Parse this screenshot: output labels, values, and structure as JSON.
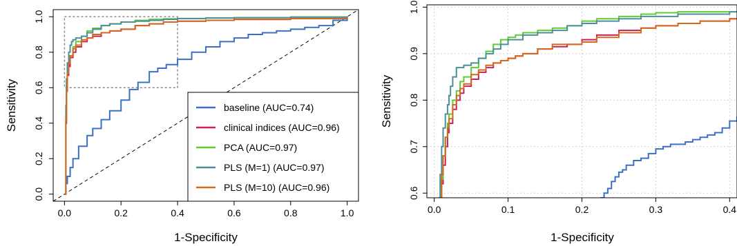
{
  "chart_data": [
    {
      "type": "line",
      "title": "",
      "xlabel": "1-Specificity",
      "ylabel": "Sensitivity",
      "xlim": [
        -0.04,
        1.04
      ],
      "ylim": [
        -0.04,
        1.04
      ],
      "xticks": [
        0.0,
        0.2,
        0.4,
        0.6,
        0.8,
        1.0
      ],
      "yticks": [
        0.0,
        0.2,
        0.4,
        0.6,
        0.8,
        1.0
      ],
      "tick_labels_x": [
        "0.0",
        "0.2",
        "0.4",
        "0.6",
        "0.8",
        "1.0"
      ],
      "tick_labels_y": [
        "0.0",
        "0.2",
        "0.4",
        "0.6",
        "0.8",
        "1.0"
      ],
      "grid": false,
      "legend_position": "bottom-right",
      "reference_line": "diagonal dashed",
      "zoom_box": {
        "x": [
          0.0,
          0.4
        ],
        "y": [
          0.6,
          1.0
        ]
      },
      "series": [
        {
          "name": "baseline (AUC=0.74)",
          "color": "#3a6fc4",
          "x": [
            0.0,
            0.005,
            0.01,
            0.02,
            0.03,
            0.05,
            0.08,
            0.1,
            0.13,
            0.16,
            0.2,
            0.23,
            0.26,
            0.3,
            0.33,
            0.36,
            0.4,
            0.45,
            0.5,
            0.55,
            0.6,
            0.65,
            0.7,
            0.75,
            0.8,
            0.85,
            0.9,
            0.95,
            1.0
          ],
          "y": [
            0.0,
            0.06,
            0.1,
            0.15,
            0.2,
            0.27,
            0.33,
            0.37,
            0.42,
            0.47,
            0.53,
            0.59,
            0.63,
            0.69,
            0.71,
            0.73,
            0.76,
            0.8,
            0.83,
            0.86,
            0.88,
            0.9,
            0.91,
            0.92,
            0.93,
            0.94,
            0.95,
            0.98,
            1.0
          ]
        },
        {
          "name": "clinical indices (AUC=0.96)",
          "color": "#cc1f5a",
          "x": [
            0.0,
            0.005,
            0.007,
            0.01,
            0.015,
            0.02,
            0.03,
            0.04,
            0.06,
            0.08,
            0.1,
            0.13,
            0.16,
            0.2,
            0.25,
            0.3,
            0.35,
            0.4,
            0.5,
            0.6,
            0.8,
            1.0
          ],
          "y": [
            0.0,
            0.4,
            0.58,
            0.67,
            0.72,
            0.77,
            0.8,
            0.83,
            0.86,
            0.88,
            0.89,
            0.91,
            0.92,
            0.93,
            0.95,
            0.96,
            0.97,
            0.975,
            0.98,
            0.985,
            0.99,
            1.0
          ]
        },
        {
          "name": "PCA (AUC=0.97)",
          "color": "#5ecc2e",
          "x": [
            0.0,
            0.005,
            0.007,
            0.01,
            0.015,
            0.02,
            0.03,
            0.04,
            0.06,
            0.08,
            0.1,
            0.13,
            0.16,
            0.2,
            0.25,
            0.3,
            0.35,
            0.4,
            0.5,
            0.6,
            0.8,
            1.0
          ],
          "y": [
            0.0,
            0.45,
            0.6,
            0.68,
            0.74,
            0.78,
            0.83,
            0.86,
            0.89,
            0.92,
            0.935,
            0.95,
            0.96,
            0.97,
            0.98,
            0.985,
            0.988,
            0.99,
            0.993,
            0.995,
            0.998,
            1.0
          ]
        },
        {
          "name": "PLS (M=1) (AUC=0.97)",
          "color": "#4b8f9a",
          "x": [
            0.0,
            0.005,
            0.007,
            0.01,
            0.015,
            0.02,
            0.025,
            0.03,
            0.04,
            0.06,
            0.08,
            0.1,
            0.13,
            0.16,
            0.2,
            0.25,
            0.3,
            0.35,
            0.4,
            0.5,
            0.6,
            0.8,
            1.0
          ],
          "y": [
            0.0,
            0.5,
            0.65,
            0.74,
            0.8,
            0.84,
            0.86,
            0.87,
            0.88,
            0.89,
            0.91,
            0.93,
            0.95,
            0.96,
            0.97,
            0.975,
            0.98,
            0.985,
            0.99,
            0.993,
            0.995,
            0.998,
            1.0
          ]
        },
        {
          "name": "PLS (M=10) (AUC=0.96)",
          "color": "#d2691e",
          "x": [
            0.0,
            0.005,
            0.007,
            0.01,
            0.015,
            0.02,
            0.03,
            0.04,
            0.06,
            0.08,
            0.1,
            0.13,
            0.16,
            0.2,
            0.25,
            0.3,
            0.35,
            0.4,
            0.5,
            0.6,
            0.8,
            1.0
          ],
          "y": [
            0.0,
            0.42,
            0.58,
            0.68,
            0.74,
            0.78,
            0.82,
            0.84,
            0.87,
            0.88,
            0.9,
            0.91,
            0.92,
            0.93,
            0.95,
            0.96,
            0.97,
            0.975,
            0.98,
            0.985,
            0.99,
            1.0
          ]
        }
      ]
    },
    {
      "type": "line",
      "title": "",
      "xlabel": "1-Specificity",
      "ylabel": "Sensitivity",
      "xlim": [
        -0.01,
        0.41
      ],
      "ylim": [
        0.59,
        1.005
      ],
      "xticks": [
        0.0,
        0.1,
        0.2,
        0.3,
        0.4
      ],
      "yticks": [
        0.6,
        0.7,
        0.8,
        0.9,
        1.0
      ],
      "tick_labels_x": [
        "0.0",
        "0.1",
        "0.2",
        "0.3",
        "0.4"
      ],
      "tick_labels_y": [
        "0.6",
        "0.7",
        "0.8",
        "0.9",
        "1.0"
      ],
      "grid": true,
      "legend_position": "none",
      "series": [
        {
          "name": "baseline (AUC=0.74)",
          "color": "#3a6fc4",
          "x": [
            0.225,
            0.23,
            0.235,
            0.24,
            0.245,
            0.25,
            0.255,
            0.26,
            0.27,
            0.28,
            0.29,
            0.3,
            0.31,
            0.32,
            0.33,
            0.34,
            0.35,
            0.36,
            0.37,
            0.38,
            0.39,
            0.4,
            0.41
          ],
          "y": [
            0.59,
            0.6,
            0.61,
            0.625,
            0.635,
            0.645,
            0.65,
            0.66,
            0.67,
            0.675,
            0.685,
            0.695,
            0.7,
            0.705,
            0.705,
            0.71,
            0.715,
            0.72,
            0.725,
            0.73,
            0.74,
            0.755,
            0.765
          ]
        },
        {
          "name": "clinical indices (AUC=0.96)",
          "color": "#cc1f5a",
          "x": [
            0.008,
            0.01,
            0.012,
            0.015,
            0.018,
            0.02,
            0.025,
            0.03,
            0.035,
            0.04,
            0.05,
            0.06,
            0.07,
            0.08,
            0.09,
            0.1,
            0.11,
            0.12,
            0.14,
            0.16,
            0.18,
            0.2,
            0.22,
            0.25,
            0.28,
            0.3,
            0.33,
            0.36,
            0.4,
            0.41
          ],
          "y": [
            0.59,
            0.62,
            0.66,
            0.7,
            0.73,
            0.75,
            0.78,
            0.8,
            0.815,
            0.83,
            0.845,
            0.86,
            0.87,
            0.88,
            0.885,
            0.89,
            0.895,
            0.9,
            0.91,
            0.915,
            0.92,
            0.93,
            0.94,
            0.95,
            0.955,
            0.96,
            0.965,
            0.97,
            0.975,
            0.975
          ]
        },
        {
          "name": "PCA (AUC=0.97)",
          "color": "#5ecc2e",
          "x": [
            0.007,
            0.009,
            0.012,
            0.015,
            0.018,
            0.02,
            0.025,
            0.03,
            0.035,
            0.04,
            0.05,
            0.06,
            0.07,
            0.08,
            0.09,
            0.1,
            0.11,
            0.12,
            0.14,
            0.16,
            0.18,
            0.2,
            0.22,
            0.25,
            0.28,
            0.3,
            0.33,
            0.36,
            0.4,
            0.41
          ],
          "y": [
            0.59,
            0.63,
            0.68,
            0.72,
            0.75,
            0.77,
            0.8,
            0.82,
            0.84,
            0.85,
            0.87,
            0.89,
            0.905,
            0.92,
            0.93,
            0.935,
            0.94,
            0.945,
            0.95,
            0.955,
            0.96,
            0.97,
            0.975,
            0.98,
            0.985,
            0.988,
            0.99,
            0.99,
            0.99,
            0.99
          ]
        },
        {
          "name": "PLS (M=1) (AUC=0.97)",
          "color": "#4b8f9a",
          "x": [
            0.006,
            0.008,
            0.01,
            0.012,
            0.015,
            0.018,
            0.02,
            0.022,
            0.025,
            0.03,
            0.04,
            0.05,
            0.06,
            0.07,
            0.08,
            0.09,
            0.1,
            0.12,
            0.14,
            0.16,
            0.18,
            0.2,
            0.22,
            0.25,
            0.28,
            0.3,
            0.33,
            0.36,
            0.4,
            0.41
          ],
          "y": [
            0.59,
            0.64,
            0.7,
            0.74,
            0.77,
            0.79,
            0.81,
            0.83,
            0.85,
            0.87,
            0.875,
            0.88,
            0.89,
            0.9,
            0.91,
            0.92,
            0.93,
            0.94,
            0.945,
            0.95,
            0.96,
            0.965,
            0.97,
            0.975,
            0.98,
            0.98,
            0.985,
            0.985,
            0.99,
            0.99
          ]
        },
        {
          "name": "PLS (M=10) (AUC=0.96)",
          "color": "#d2691e",
          "x": [
            0.008,
            0.01,
            0.012,
            0.015,
            0.018,
            0.02,
            0.025,
            0.03,
            0.035,
            0.04,
            0.05,
            0.06,
            0.07,
            0.08,
            0.09,
            0.1,
            0.11,
            0.12,
            0.14,
            0.16,
            0.18,
            0.2,
            0.22,
            0.25,
            0.28,
            0.3,
            0.33,
            0.36,
            0.4,
            0.41
          ],
          "y": [
            0.59,
            0.64,
            0.68,
            0.72,
            0.74,
            0.76,
            0.79,
            0.81,
            0.825,
            0.835,
            0.855,
            0.865,
            0.875,
            0.88,
            0.885,
            0.89,
            0.895,
            0.9,
            0.91,
            0.92,
            0.92,
            0.925,
            0.935,
            0.945,
            0.955,
            0.96,
            0.965,
            0.97,
            0.975,
            0.975
          ]
        }
      ]
    }
  ]
}
